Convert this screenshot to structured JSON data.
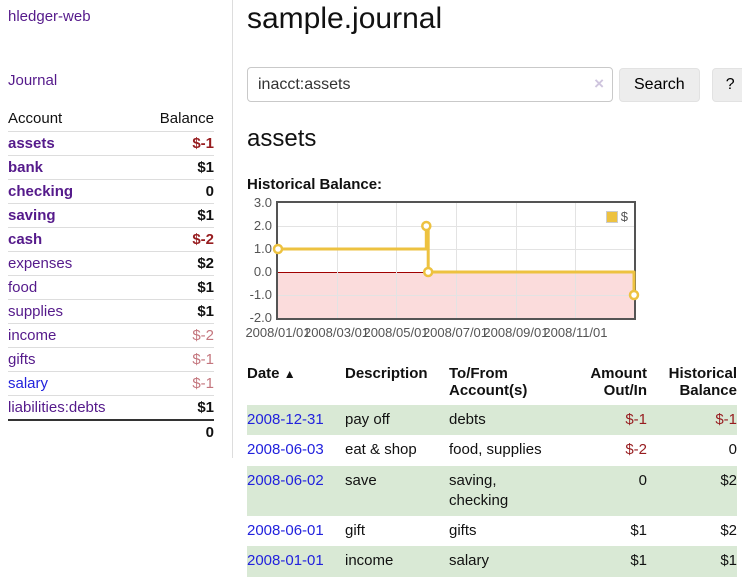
{
  "app": {
    "title": "hledger-web"
  },
  "sidebar": {
    "journal_link": "Journal",
    "accounts": {
      "headers": [
        "Account",
        "Balance"
      ],
      "rows": [
        {
          "account": "assets",
          "balance": "$-1",
          "depth": 1,
          "bold": true,
          "neg": "strong"
        },
        {
          "account": "bank",
          "balance": "$1",
          "depth": 2,
          "bold": true
        },
        {
          "account": "checking",
          "balance": "0",
          "depth": 3,
          "bold": true
        },
        {
          "account": "saving",
          "balance": "$1",
          "depth": 3,
          "bold": true
        },
        {
          "account": "cash",
          "balance": "$-2",
          "depth": 2,
          "bold": true,
          "neg": "strong"
        },
        {
          "account": "expenses",
          "balance": "$2",
          "depth": 1
        },
        {
          "account": "food",
          "balance": "$1",
          "depth": 2
        },
        {
          "account": "supplies",
          "balance": "$1",
          "depth": 2
        },
        {
          "account": "income",
          "balance": "$-2",
          "depth": 1,
          "neg": "soft"
        },
        {
          "account": "gifts",
          "balance": "$-1",
          "depth": 2,
          "neg": "soft"
        },
        {
          "account": "salary",
          "balance": "$-1",
          "depth": 2,
          "neg": "soft",
          "link": "blue"
        },
        {
          "account": "liabilities:debts",
          "balance": "$1",
          "depth": 1
        }
      ],
      "total": "0"
    }
  },
  "main": {
    "title": "sample.journal",
    "search": {
      "value": "inacct:assets",
      "clear_icon": "×",
      "button_label": "Search",
      "help_label": "?"
    },
    "account_heading": "assets"
  },
  "chart_data": {
    "type": "line",
    "title": "Historical Balance:",
    "x_max_days": 365,
    "ylim": [
      -2,
      3
    ],
    "y_ticks": [
      {
        "label": "3.0",
        "value": 3
      },
      {
        "label": "2.0",
        "value": 2
      },
      {
        "label": "1.0",
        "value": 1
      },
      {
        "label": "0.0",
        "value": 0
      },
      {
        "label": "-1.0",
        "value": -1
      },
      {
        "label": "-2.0",
        "value": -2
      }
    ],
    "x_ticks": [
      {
        "label": "2008/01/01",
        "day": 0
      },
      {
        "label": "2008/03/01",
        "day": 60
      },
      {
        "label": "2008/05/01",
        "day": 121
      },
      {
        "label": "2008/07/01",
        "day": 182
      },
      {
        "label": "2008/09/01",
        "day": 244
      },
      {
        "label": "2008/11/01",
        "day": 305
      }
    ],
    "negative_region": {
      "from": -2,
      "to": 0,
      "fill": "#fbdcdc",
      "line": "#a00000"
    },
    "legend": {
      "position": "top-right"
    },
    "series": [
      {
        "name": "$",
        "color": "#edc240",
        "step": true,
        "points": [
          {
            "date": "2008-01-01",
            "day": 0,
            "y": 1
          },
          {
            "date": "2008-06-01",
            "day": 152,
            "y": 2
          },
          {
            "date": "2008-06-03",
            "day": 154,
            "y": 0
          },
          {
            "date": "2008-12-31",
            "day": 365,
            "y": -1
          }
        ]
      }
    ]
  },
  "register": {
    "headers": {
      "date": "Date",
      "sort_indicator": "▲",
      "description": "Description",
      "accounts": "To/From\nAccount(s)",
      "amount": "Amount\nOut/In",
      "balance": "Historical\nBalance"
    },
    "rows": [
      {
        "date": "2008-12-31",
        "description": "pay off",
        "accounts": "debts",
        "amount": "$-1",
        "amount_negative": true,
        "balance": "$-1",
        "balance_negative": true
      },
      {
        "date": "2008-06-03",
        "description": "eat & shop",
        "accounts": "food, supplies",
        "amount": "$-2",
        "amount_negative": true,
        "balance": "0",
        "balance_negative": false
      },
      {
        "date": "2008-06-02",
        "description": "save",
        "accounts": "saving,\nchecking",
        "amount": "0",
        "amount_negative": false,
        "balance": "$2",
        "balance_negative": false
      },
      {
        "date": "2008-06-01",
        "description": "gift",
        "accounts": "gifts",
        "amount": "$1",
        "amount_negative": false,
        "balance": "$2",
        "balance_negative": false
      },
      {
        "date": "2008-01-01",
        "description": "income",
        "accounts": "salary",
        "amount": "$1",
        "amount_negative": false,
        "balance": "$1",
        "balance_negative": false
      }
    ]
  },
  "colors": {
    "link_purple": "#551a8b",
    "link_blue": "#2222dd",
    "negative_strong": "#971c1f",
    "negative_soft": "#c4767e",
    "row_green": "#d9e9d5",
    "series_yellow": "#edc240",
    "negative_region_pink": "#fbdcdc",
    "zero_line_red": "#a00000",
    "chart_border_gray": "#545454"
  }
}
